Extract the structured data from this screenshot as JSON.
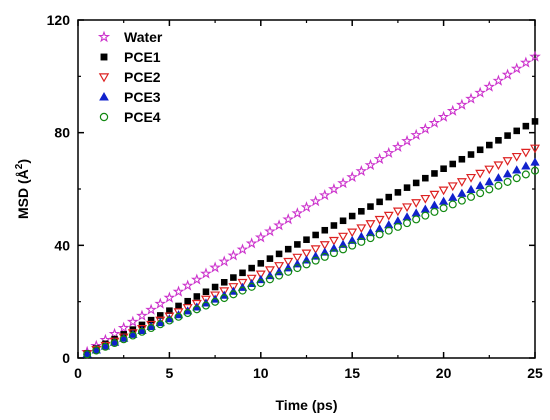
{
  "chart_data": {
    "type": "scatter",
    "xlabel": "Time (ps)",
    "ylabel": "MSD (Å²)",
    "ylabel_base": "MSD (",
    "ylabel_unit": "Å",
    "ylabel_sup": "2",
    "ylabel_close": ")",
    "xlim": [
      0,
      25
    ],
    "ylim": [
      0,
      120
    ],
    "x_ticks": [
      0,
      5,
      10,
      15,
      20,
      25
    ],
    "y_ticks": [
      0,
      40,
      80,
      120
    ],
    "grid": false,
    "legend_position": "top-left",
    "x_step": 0.5,
    "series": [
      {
        "name": "Water",
        "marker": "star",
        "color": "#cc33cc",
        "slope": 4.28
      },
      {
        "name": "PCE1",
        "marker": "square",
        "color": "#000000",
        "slope": 3.36
      },
      {
        "name": "PCE2",
        "marker": "triangle-down",
        "color": "#dd2222",
        "slope": 2.98
      },
      {
        "name": "PCE3",
        "marker": "triangle-up",
        "color": "#1122cc",
        "slope": 2.78
      },
      {
        "name": "PCE4",
        "marker": "circle",
        "color": "#118811",
        "slope": 2.66
      }
    ]
  }
}
